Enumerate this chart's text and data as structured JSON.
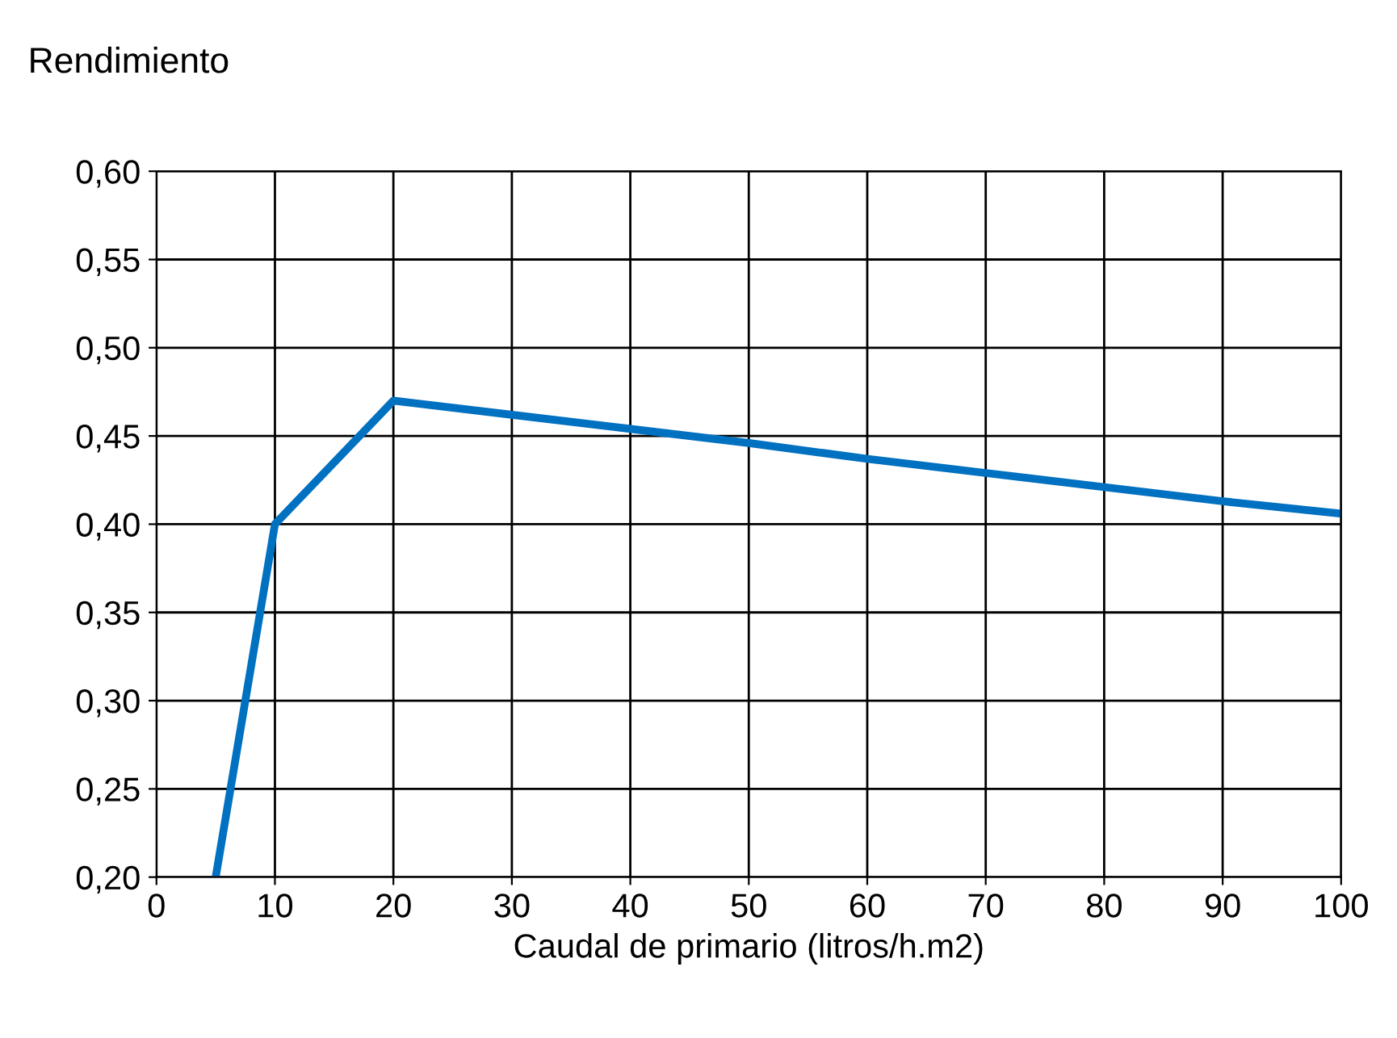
{
  "chart_data": {
    "type": "line",
    "title": "Rendimiento",
    "xlabel": "Caudal de primario (litros/h.m2)",
    "x": [
      5,
      10,
      20,
      30,
      40,
      50,
      60,
      70,
      80,
      90,
      100
    ],
    "series": [
      {
        "color": "#0070c0",
        "values": [
          0.2,
          0.4,
          0.47,
          0.462,
          0.454,
          0.446,
          0.437,
          0.429,
          0.421,
          0.413,
          0.406
        ]
      }
    ],
    "xlim": [
      0,
      100
    ],
    "xticks": [
      0,
      10,
      20,
      30,
      40,
      50,
      60,
      70,
      80,
      90,
      100
    ],
    "ylim": [
      0.2,
      0.6
    ],
    "yticks": [
      {
        "value": 0.2,
        "label": "0,20"
      },
      {
        "value": 0.25,
        "label": "0,25"
      },
      {
        "value": 0.3,
        "label": "0,30"
      },
      {
        "value": 0.35,
        "label": "0,35"
      },
      {
        "value": 0.4,
        "label": "0,40"
      },
      {
        "value": 0.45,
        "label": "0,45"
      },
      {
        "value": 0.5,
        "label": "0,50"
      },
      {
        "value": 0.55,
        "label": "0,55"
      },
      {
        "value": 0.6,
        "label": "0,60"
      }
    ],
    "grid": true,
    "marker": "none",
    "line_style": "solid"
  }
}
